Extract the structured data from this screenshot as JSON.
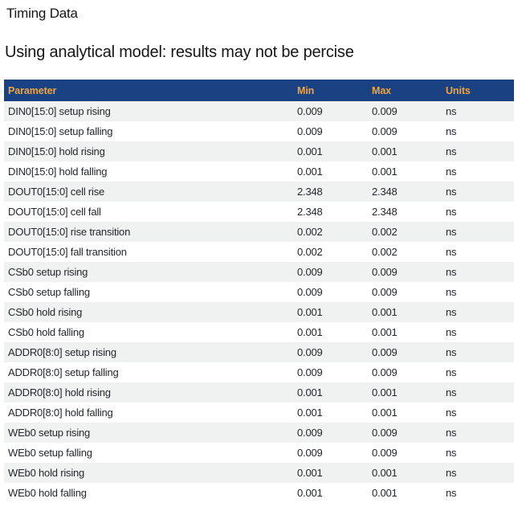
{
  "page": {
    "title": "Timing Data",
    "subtitle": "Using analytical model: results may not be percise"
  },
  "table": {
    "columns": [
      "Parameter",
      "Min",
      "Max",
      "Units"
    ],
    "rows": [
      {
        "parameter": "DIN0[15:0] setup rising",
        "min": "0.009",
        "max": "0.009",
        "units": "ns"
      },
      {
        "parameter": "DIN0[15:0] setup falling",
        "min": "0.009",
        "max": "0.009",
        "units": "ns"
      },
      {
        "parameter": "DIN0[15:0] hold rising",
        "min": "0.001",
        "max": "0.001",
        "units": "ns"
      },
      {
        "parameter": "DIN0[15:0] hold falling",
        "min": "0.001",
        "max": "0.001",
        "units": "ns"
      },
      {
        "parameter": "DOUT0[15:0] cell rise",
        "min": "2.348",
        "max": "2.348",
        "units": "ns"
      },
      {
        "parameter": "DOUT0[15:0] cell fall",
        "min": "2.348",
        "max": "2.348",
        "units": "ns"
      },
      {
        "parameter": "DOUT0[15:0] rise transition",
        "min": "0.002",
        "max": "0.002",
        "units": "ns"
      },
      {
        "parameter": "DOUT0[15:0] fall transition",
        "min": "0.002",
        "max": "0.002",
        "units": "ns"
      },
      {
        "parameter": "CSb0 setup rising",
        "min": "0.009",
        "max": "0.009",
        "units": "ns"
      },
      {
        "parameter": "CSb0 setup falling",
        "min": "0.009",
        "max": "0.009",
        "units": "ns"
      },
      {
        "parameter": "CSb0 hold rising",
        "min": "0.001",
        "max": "0.001",
        "units": "ns"
      },
      {
        "parameter": "CSb0 hold falling",
        "min": "0.001",
        "max": "0.001",
        "units": "ns"
      },
      {
        "parameter": "ADDR0[8:0] setup rising",
        "min": "0.009",
        "max": "0.009",
        "units": "ns"
      },
      {
        "parameter": "ADDR0[8:0] setup falling",
        "min": "0.009",
        "max": "0.009",
        "units": "ns"
      },
      {
        "parameter": "ADDR0[8:0] hold rising",
        "min": "0.001",
        "max": "0.001",
        "units": "ns"
      },
      {
        "parameter": "ADDR0[8:0] hold falling",
        "min": "0.001",
        "max": "0.001",
        "units": "ns"
      },
      {
        "parameter": "WEb0 setup rising",
        "min": "0.009",
        "max": "0.009",
        "units": "ns"
      },
      {
        "parameter": "WEb0 setup falling",
        "min": "0.009",
        "max": "0.009",
        "units": "ns"
      },
      {
        "parameter": "WEb0 hold rising",
        "min": "0.001",
        "max": "0.001",
        "units": "ns"
      },
      {
        "parameter": "WEb0 hold falling",
        "min": "0.001",
        "max": "0.001",
        "units": "ns"
      }
    ]
  },
  "colors": {
    "header_bg": "#1a4282",
    "header_text": "#efa440",
    "row_stripe": "#f0f1f1",
    "body_text": "#24272b",
    "title_text": "#151515"
  }
}
